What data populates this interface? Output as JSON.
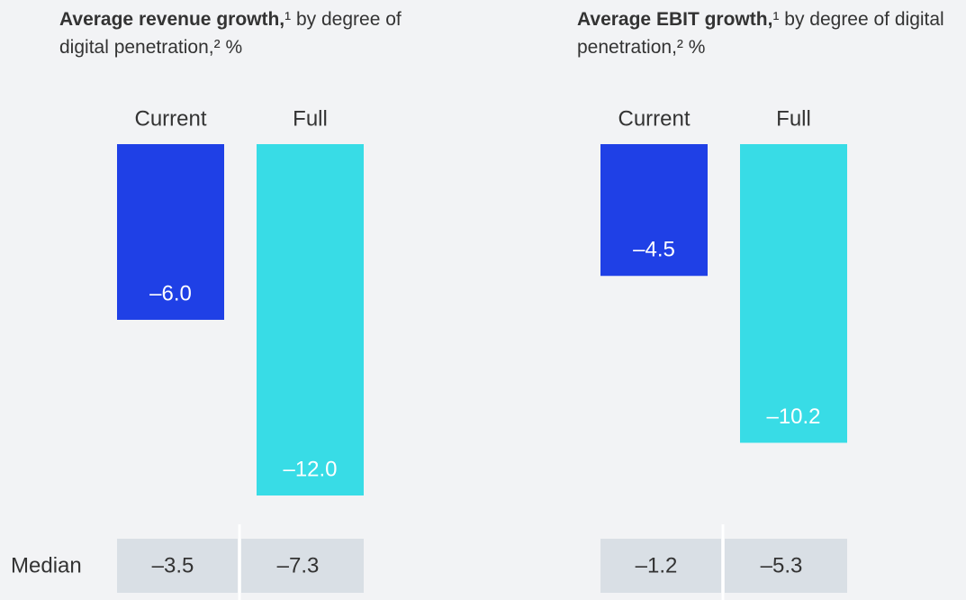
{
  "chart_data": [
    {
      "type": "bar",
      "title": "Average revenue growth,",
      "subtitle": "¹ by degree of digital penetration,² %",
      "categories": [
        "Current",
        "Full"
      ],
      "colors": [
        "#1f40e6",
        "#38dce6"
      ],
      "values": [
        -6.0,
        -12.0
      ],
      "value_labels": [
        "–6.0",
        "–12.0"
      ],
      "medians": [
        -3.5,
        -7.3
      ],
      "median_labels": [
        "–3.5",
        "–7.3"
      ]
    },
    {
      "type": "bar",
      "title": "Average EBIT growth,",
      "subtitle": "¹ by degree of digital penetration,² %",
      "categories": [
        "Current",
        "Full"
      ],
      "colors": [
        "#1f40e6",
        "#38dce6"
      ],
      "values": [
        -4.5,
        -10.2
      ],
      "value_labels": [
        "–4.5",
        "–10.2"
      ],
      "medians": [
        -1.2,
        -5.3
      ],
      "median_labels": [
        "–1.2",
        "–5.3"
      ]
    }
  ],
  "median_label": "Median"
}
